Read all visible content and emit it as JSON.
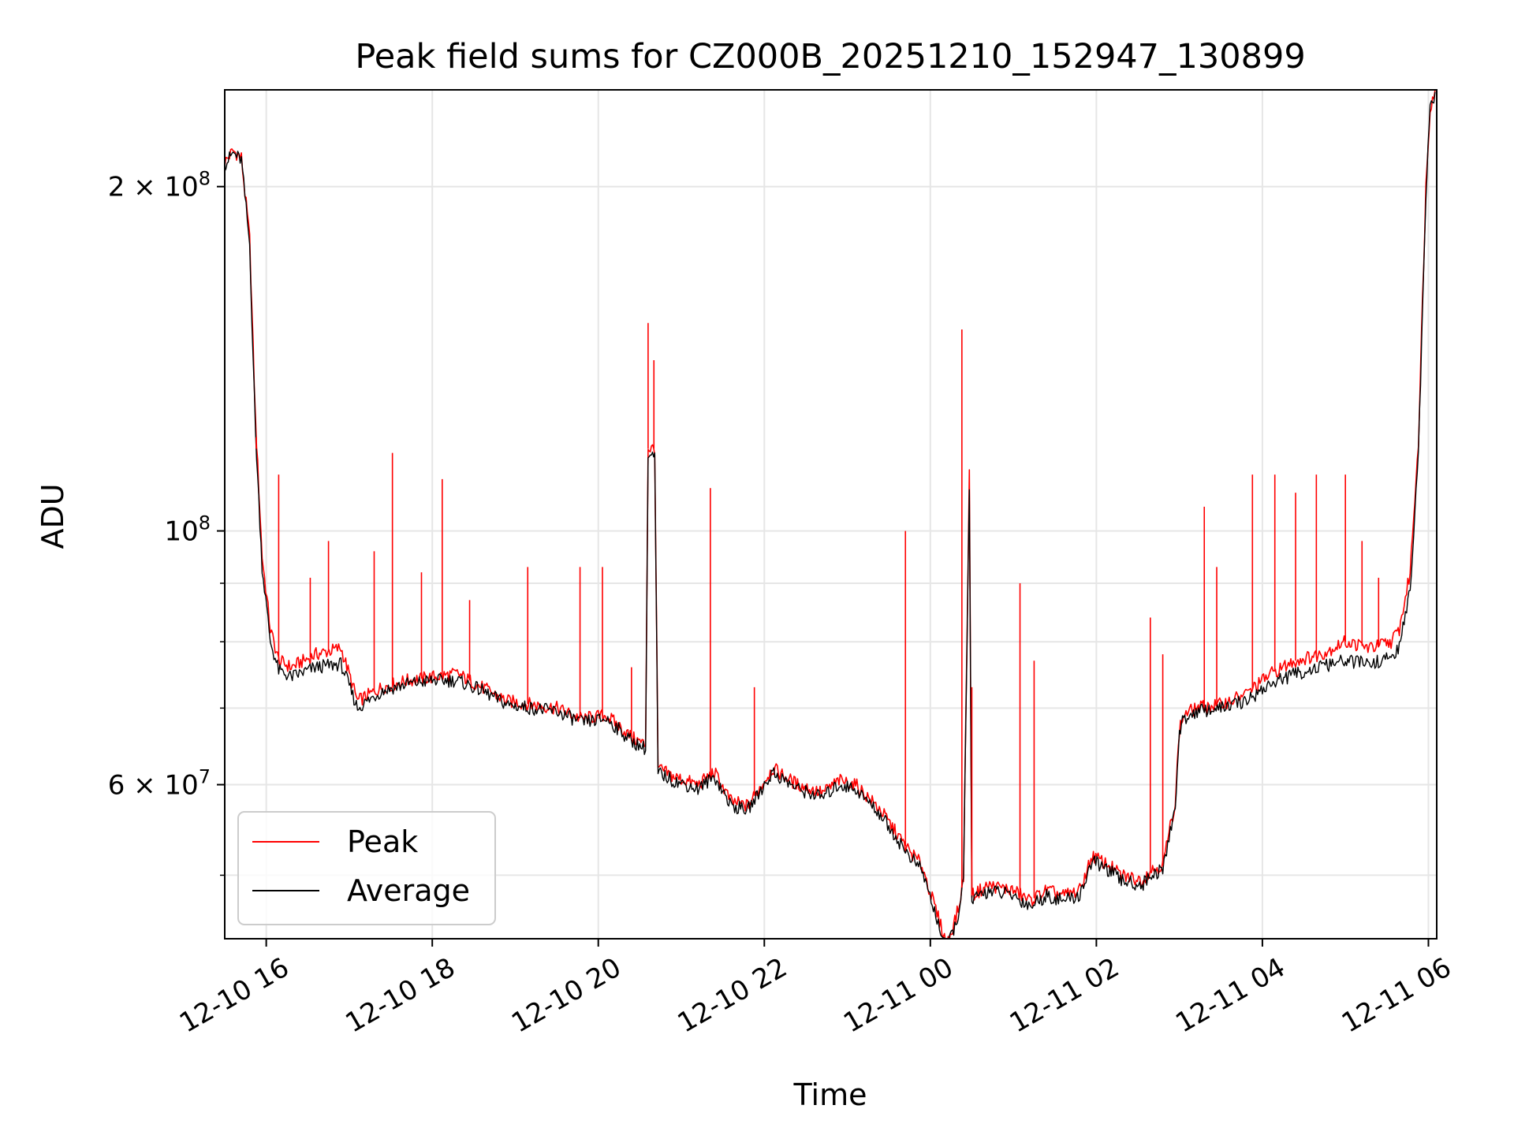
{
  "chart_data": {
    "type": "line",
    "title": "Peak field sums for CZ000B_20251210_152947_130899",
    "xlabel": "Time",
    "ylabel": "ADU",
    "yscale": "log",
    "grid": true,
    "legend_position": "lower-left",
    "xlim_hours": [
      15.5,
      30.1
    ],
    "ylim": [
      44000000,
      243000000
    ],
    "x_ticks": [
      {
        "label": "12-10 16",
        "hour": 16
      },
      {
        "label": "12-10 18",
        "hour": 18
      },
      {
        "label": "12-10 20",
        "hour": 20
      },
      {
        "label": "12-10 22",
        "hour": 22
      },
      {
        "label": "12-11 00",
        "hour": 24
      },
      {
        "label": "12-11 02",
        "hour": 26
      },
      {
        "label": "12-11 04",
        "hour": 28
      },
      {
        "label": "12-11 06",
        "hour": 30
      }
    ],
    "y_major_ticks": [
      {
        "label_base": "2 × 10",
        "label_exp": "8",
        "value": 200000000
      },
      {
        "label_base": "10",
        "label_exp": "8",
        "value": 100000000
      },
      {
        "label_base": "6 × 10",
        "label_exp": "7",
        "value": 60000000
      }
    ],
    "y_minor_ticks": [
      50000000,
      70000000,
      80000000,
      90000000
    ],
    "series": [
      {
        "name": "Peak",
        "color": "#ff0000",
        "x_hours": [
          15.5,
          15.6,
          15.7,
          15.8,
          15.87,
          15.95,
          16.05,
          16.15,
          16.3,
          16.6,
          16.9,
          17.1,
          17.4,
          17.7,
          18.0,
          18.3,
          18.6,
          18.9,
          19.2,
          19.5,
          19.8,
          20.1,
          20.4,
          20.57,
          20.6,
          20.68,
          20.72,
          20.9,
          21.2,
          21.4,
          21.6,
          21.8,
          22.1,
          22.4,
          22.7,
          22.9,
          23.1,
          23.4,
          23.7,
          23.9,
          24.05,
          24.2,
          24.35,
          24.4,
          24.47,
          24.5,
          24.7,
          25.0,
          25.2,
          25.4,
          25.6,
          25.8,
          25.95,
          26.15,
          26.3,
          26.55,
          26.65,
          26.8,
          26.95,
          27.0,
          27.05,
          27.2,
          27.5,
          27.8,
          28.1,
          28.4,
          28.7,
          29.0,
          29.3,
          29.55,
          29.65,
          29.78,
          29.88,
          29.93,
          29.97,
          30.02,
          30.08
        ],
        "y_values": [
          210000000,
          215000000,
          212000000,
          180000000,
          125000000,
          95000000,
          82000000,
          77000000,
          76000000,
          78000000,
          79000000,
          71000000,
          73000000,
          74000000,
          74500000,
          75000000,
          73000000,
          71000000,
          70500000,
          70000000,
          68500000,
          69000000,
          66000000,
          65000000,
          118000000,
          118000000,
          62000000,
          61000000,
          60000000,
          61500000,
          58000000,
          57500000,
          62000000,
          60000000,
          59000000,
          60500000,
          60000000,
          57000000,
          53000000,
          51000000,
          47000000,
          43500000,
          47000000,
          50000000,
          112000000,
          48000000,
          49000000,
          48500000,
          47500000,
          48500000,
          48000000,
          48500000,
          52000000,
          51000000,
          50000000,
          49500000,
          50500000,
          51000000,
          58000000,
          67000000,
          69000000,
          70000000,
          70500000,
          72000000,
          75000000,
          77000000,
          78000000,
          80000000,
          79000000,
          80000000,
          82000000,
          92000000,
          120000000,
          160000000,
          200000000,
          235000000,
          243000000
        ]
      },
      {
        "name": "Average",
        "color": "#000000",
        "x_hours": [
          15.5,
          15.6,
          15.7,
          15.8,
          15.87,
          15.95,
          16.05,
          16.15,
          16.3,
          16.6,
          16.9,
          17.1,
          17.4,
          17.7,
          18.0,
          18.3,
          18.6,
          18.9,
          19.2,
          19.5,
          19.8,
          20.1,
          20.4,
          20.57,
          20.6,
          20.68,
          20.72,
          20.9,
          21.2,
          21.4,
          21.6,
          21.8,
          22.1,
          22.4,
          22.7,
          22.9,
          23.1,
          23.4,
          23.7,
          23.9,
          24.05,
          24.2,
          24.35,
          24.4,
          24.47,
          24.5,
          24.7,
          25.0,
          25.2,
          25.4,
          25.6,
          25.8,
          25.95,
          26.15,
          26.3,
          26.55,
          26.65,
          26.8,
          26.95,
          27.0,
          27.05,
          27.2,
          27.5,
          27.8,
          28.1,
          28.4,
          28.7,
          29.0,
          29.3,
          29.55,
          29.65,
          29.78,
          29.88,
          29.93,
          29.97,
          30.02,
          30.08
        ],
        "y_values": [
          209000000,
          214000000,
          211000000,
          178000000,
          122000000,
          93000000,
          80000000,
          75500000,
          74500000,
          76000000,
          76500000,
          70000000,
          72500000,
          73500000,
          74000000,
          74000000,
          72500000,
          70500000,
          70000000,
          69500000,
          68000000,
          68500000,
          65500000,
          64500000,
          116000000,
          116000000,
          61500000,
          60500000,
          59500000,
          61000000,
          57500000,
          57000000,
          61500000,
          59500000,
          58500000,
          60000000,
          59500000,
          56500000,
          52500000,
          50500000,
          46500000,
          43000000,
          46500000,
          49500000,
          110000000,
          47500000,
          48500000,
          48000000,
          47000000,
          48000000,
          47500000,
          48000000,
          51500000,
          50500000,
          49500000,
          49000000,
          50000000,
          50500000,
          57500000,
          66500000,
          68500000,
          69500000,
          70000000,
          71000000,
          73500000,
          75000000,
          76000000,
          77000000,
          76500000,
          77500000,
          79000000,
          89000000,
          117000000,
          157000000,
          197000000,
          233000000,
          242000000
        ]
      }
    ],
    "peak_spikes": [
      {
        "hour": 15.88,
        "value": 118000000
      },
      {
        "hour": 16.15,
        "value": 112000000
      },
      {
        "hour": 16.53,
        "value": 91000000
      },
      {
        "hour": 16.75,
        "value": 98000000
      },
      {
        "hour": 17.3,
        "value": 96000000
      },
      {
        "hour": 17.52,
        "value": 117000000
      },
      {
        "hour": 17.87,
        "value": 92000000
      },
      {
        "hour": 18.12,
        "value": 111000000
      },
      {
        "hour": 18.45,
        "value": 87000000
      },
      {
        "hour": 19.15,
        "value": 93000000
      },
      {
        "hour": 19.78,
        "value": 93000000
      },
      {
        "hour": 20.05,
        "value": 93000000
      },
      {
        "hour": 20.4,
        "value": 76000000
      },
      {
        "hour": 20.6,
        "value": 152000000
      },
      {
        "hour": 20.67,
        "value": 141000000
      },
      {
        "hour": 21.35,
        "value": 109000000
      },
      {
        "hour": 21.88,
        "value": 73000000
      },
      {
        "hour": 23.7,
        "value": 100000000
      },
      {
        "hour": 24.38,
        "value": 150000000
      },
      {
        "hour": 24.5,
        "value": 73000000
      },
      {
        "hour": 25.08,
        "value": 90000000
      },
      {
        "hour": 25.25,
        "value": 77000000
      },
      {
        "hour": 26.65,
        "value": 84000000
      },
      {
        "hour": 26.8,
        "value": 78000000
      },
      {
        "hour": 27.3,
        "value": 105000000
      },
      {
        "hour": 27.45,
        "value": 93000000
      },
      {
        "hour": 27.88,
        "value": 112000000
      },
      {
        "hour": 28.15,
        "value": 112000000
      },
      {
        "hour": 28.4,
        "value": 108000000
      },
      {
        "hour": 28.65,
        "value": 112000000
      },
      {
        "hour": 29.0,
        "value": 112000000
      },
      {
        "hour": 29.2,
        "value": 98000000
      },
      {
        "hour": 29.4,
        "value": 91000000
      }
    ]
  }
}
